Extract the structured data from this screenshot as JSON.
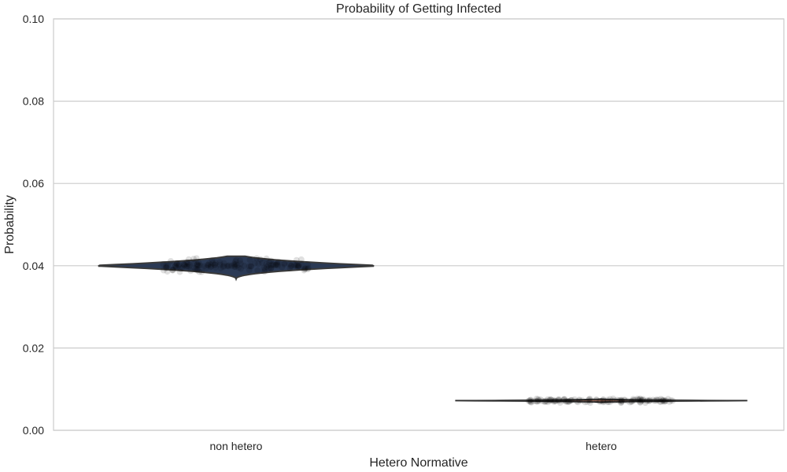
{
  "chart_data": {
    "type": "violin",
    "title": "Probability of Getting Infected",
    "xlabel": "Hetero Normative",
    "ylabel": "Probability",
    "ylim": [
      0,
      0.1
    ],
    "yticks": [
      0.0,
      0.02,
      0.04,
      0.06,
      0.08,
      0.1
    ],
    "ytick_labels": [
      "0.00",
      "0.02",
      "0.04",
      "0.06",
      "0.08",
      "0.10"
    ],
    "grid": true,
    "categories": [
      "non hetero",
      "hetero"
    ],
    "series": [
      {
        "category": "non hetero",
        "center": 0.04,
        "min": 0.0368,
        "max": 0.0423,
        "points_spread": [
          0.0385,
          0.0418
        ],
        "color": "#2b3a55",
        "point_color": "#000000"
      },
      {
        "category": "hetero",
        "center": 0.0072,
        "min": 0.0068,
        "max": 0.0076,
        "points_spread": [
          0.0067,
          0.0077
        ],
        "color": "#c9826b",
        "point_color": "#000000"
      }
    ]
  }
}
